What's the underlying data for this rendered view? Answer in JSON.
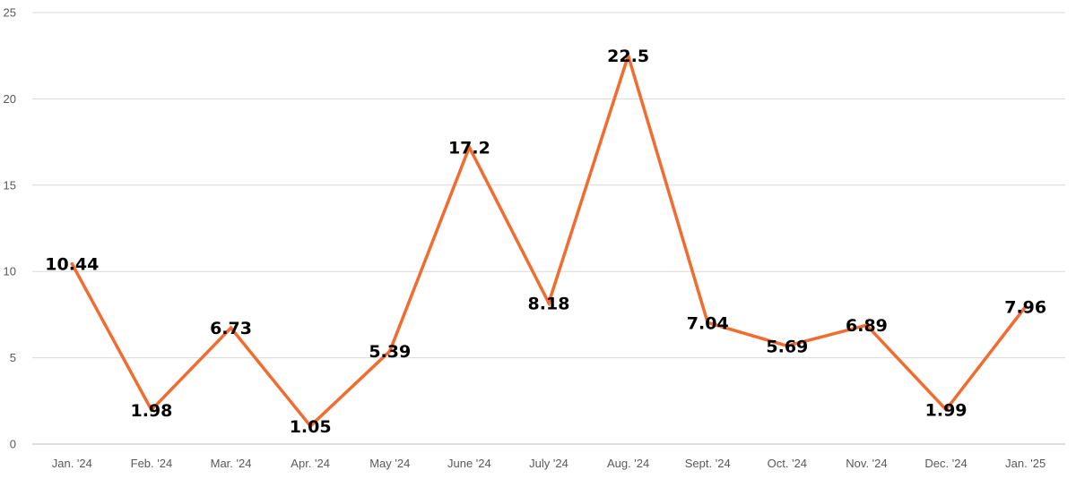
{
  "chart_data": {
    "type": "line",
    "categories": [
      "Jan. '24",
      "Feb. '24",
      "Mar. '24",
      "Apr. '24",
      "May '24",
      "June '24",
      "July '24",
      "Aug. '24",
      "Sept. '24",
      "Oct. '24",
      "Nov. '24",
      "Dec. '24",
      "Jan. '25"
    ],
    "series": [
      {
        "values": [
          10.44,
          1.98,
          6.73,
          1.05,
          5.39,
          17.2,
          8.18,
          22.5,
          7.04,
          5.69,
          6.89,
          1.99,
          7.96
        ],
        "labels": [
          "10.44",
          "1.98",
          "6.73",
          "1.05",
          "5.39",
          "17.2",
          "8.18",
          "22.5",
          "7.04",
          "5.69",
          "6.89",
          "1.99",
          "7.96"
        ],
        "color": "#f26b2f"
      }
    ],
    "y_ticks": [
      "0",
      "5",
      "10",
      "15",
      "20",
      "25"
    ],
    "ylim": [
      0,
      25
    ],
    "grid": true,
    "legend": "none",
    "title": "",
    "xlabel": "",
    "ylabel": ""
  }
}
